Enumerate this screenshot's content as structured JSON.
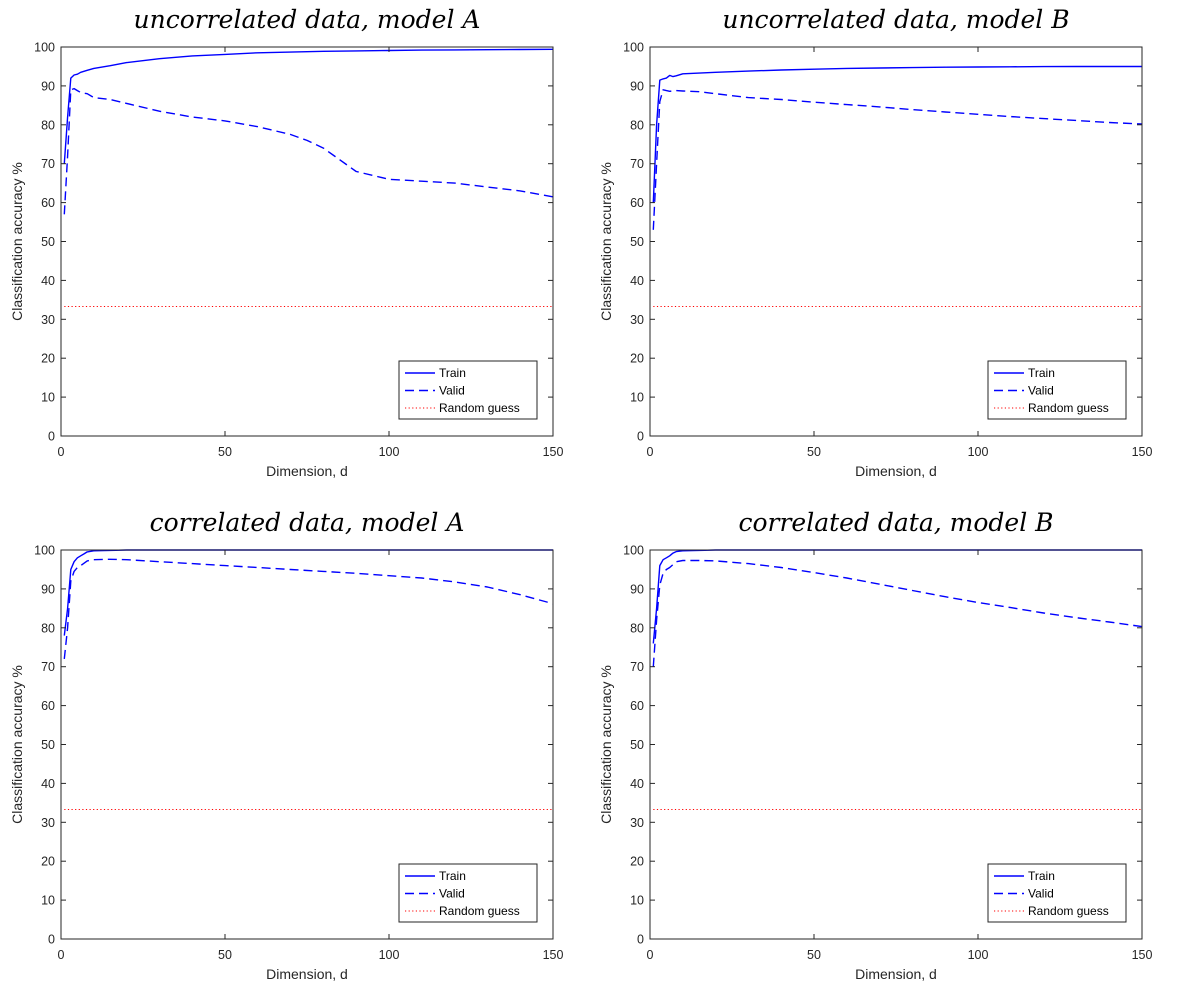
{
  "chart_data": [
    {
      "type": "line",
      "title": "uncorrelated data, model A",
      "xlabel": "Dimension, d",
      "ylabel": "Classification accuracy %",
      "xlim": [
        0,
        150
      ],
      "ylim": [
        0,
        100
      ],
      "xticks": [
        0,
        50,
        100,
        150
      ],
      "yticks": [
        0,
        10,
        20,
        30,
        40,
        50,
        60,
        70,
        80,
        90,
        100
      ],
      "grid": false,
      "legend_position": "bottom-right",
      "series": [
        {
          "name": "Train",
          "style": "solid",
          "color": "#0000ff",
          "x": [
            1,
            2,
            3,
            4,
            5,
            6,
            8,
            10,
            15,
            20,
            30,
            40,
            50,
            60,
            70,
            80,
            90,
            100,
            110,
            120,
            130,
            140,
            150
          ],
          "y": [
            70,
            82,
            92,
            92.8,
            93,
            93.5,
            94,
            94.5,
            95.2,
            96,
            97,
            97.7,
            98.1,
            98.5,
            98.7,
            98.9,
            99,
            99.1,
            99.2,
            99.25,
            99.3,
            99.35,
            99.4
          ]
        },
        {
          "name": "Valid",
          "style": "dashed",
          "color": "#0000ff",
          "x": [
            1,
            2,
            3,
            4,
            5,
            6,
            8,
            10,
            15,
            20,
            30,
            40,
            50,
            60,
            70,
            75,
            80,
            85,
            90,
            95,
            100,
            110,
            120,
            130,
            140,
            150
          ],
          "y": [
            57,
            72,
            89,
            89.3,
            88.8,
            88.3,
            88,
            87,
            86.5,
            85.5,
            83.5,
            82,
            81,
            79.5,
            77.5,
            76,
            74,
            71,
            68,
            67,
            66,
            65.5,
            65,
            64,
            63,
            61.5
          ]
        },
        {
          "name": "Random guess",
          "style": "dotted",
          "color": "#ff0000",
          "x": [
            1,
            150
          ],
          "y": [
            33.3,
            33.3
          ]
        }
      ]
    },
    {
      "type": "line",
      "title": "uncorrelated data, model B",
      "xlabel": "Dimension, d",
      "ylabel": "Classification accuracy %",
      "xlim": [
        0,
        150
      ],
      "ylim": [
        0,
        100
      ],
      "xticks": [
        0,
        50,
        100,
        150
      ],
      "yticks": [
        0,
        10,
        20,
        30,
        40,
        50,
        60,
        70,
        80,
        90,
        100
      ],
      "grid": false,
      "legend_position": "bottom-right",
      "series": [
        {
          "name": "Train",
          "style": "solid",
          "color": "#0000ff",
          "x": [
            1,
            2,
            3,
            4,
            5,
            6,
            7,
            8,
            10,
            15,
            20,
            30,
            40,
            50,
            60,
            70,
            80,
            90,
            100,
            110,
            120,
            130,
            140,
            150
          ],
          "y": [
            60,
            80,
            91.5,
            91.8,
            92,
            92.7,
            92.4,
            92.6,
            93.1,
            93.3,
            93.5,
            93.8,
            94.1,
            94.3,
            94.5,
            94.6,
            94.7,
            94.8,
            94.85,
            94.9,
            94.95,
            95,
            95,
            95
          ]
        },
        {
          "name": "Valid",
          "style": "dashed",
          "color": "#0000ff",
          "x": [
            1,
            2,
            3,
            4,
            5,
            6,
            8,
            10,
            15,
            20,
            30,
            40,
            50,
            60,
            70,
            80,
            90,
            100,
            110,
            120,
            130,
            140,
            150
          ],
          "y": [
            53,
            70,
            86,
            89,
            88.8,
            88.6,
            88.8,
            88.7,
            88.5,
            88,
            87,
            86.5,
            85.8,
            85.2,
            84.6,
            83.9,
            83.3,
            82.7,
            82.1,
            81.6,
            81.1,
            80.6,
            80.2
          ]
        },
        {
          "name": "Random guess",
          "style": "dotted",
          "color": "#ff0000",
          "x": [
            1,
            150
          ],
          "y": [
            33.3,
            33.3
          ]
        }
      ]
    },
    {
      "type": "line",
      "title": "correlated data, model A",
      "xlabel": "Dimension, d",
      "ylabel": "Classification accuracy %",
      "xlim": [
        0,
        150
      ],
      "ylim": [
        0,
        100
      ],
      "xticks": [
        0,
        50,
        100,
        150
      ],
      "yticks": [
        0,
        10,
        20,
        30,
        40,
        50,
        60,
        70,
        80,
        90,
        100
      ],
      "grid": false,
      "legend_position": "bottom-right",
      "series": [
        {
          "name": "Train",
          "style": "solid",
          "color": "#0000ff",
          "x": [
            1,
            2,
            3,
            4,
            5,
            6,
            7,
            8,
            10,
            15,
            20,
            30,
            50,
            100,
            150
          ],
          "y": [
            78,
            85,
            95,
            97,
            98,
            98.5,
            99,
            99.5,
            99.8,
            99.9,
            100,
            100,
            100,
            100,
            100
          ]
        },
        {
          "name": "Valid",
          "style": "dashed",
          "color": "#0000ff",
          "x": [
            1,
            2,
            3,
            4,
            5,
            6,
            8,
            10,
            15,
            20,
            30,
            40,
            50,
            60,
            70,
            80,
            90,
            100,
            110,
            120,
            130,
            140,
            150
          ],
          "y": [
            72,
            80,
            92,
            94.5,
            95.5,
            96,
            97.2,
            97.5,
            97.6,
            97.5,
            97,
            96.5,
            96,
            95.5,
            95,
            94.5,
            94,
            93.4,
            92.8,
            91.8,
            90.5,
            88.5,
            86.2
          ]
        },
        {
          "name": "Random guess",
          "style": "dotted",
          "color": "#ff0000",
          "x": [
            1,
            150
          ],
          "y": [
            33.3,
            33.3
          ]
        }
      ]
    },
    {
      "type": "line",
      "title": "correlated data, model B",
      "xlabel": "Dimension, d",
      "ylabel": "Classification accuracy %",
      "xlim": [
        0,
        150
      ],
      "ylim": [
        0,
        100
      ],
      "xticks": [
        0,
        50,
        100,
        150
      ],
      "yticks": [
        0,
        10,
        20,
        30,
        40,
        50,
        60,
        70,
        80,
        90,
        100
      ],
      "grid": false,
      "legend_position": "bottom-right",
      "series": [
        {
          "name": "Train",
          "style": "solid",
          "color": "#0000ff",
          "x": [
            1,
            2,
            3,
            4,
            5,
            6,
            7,
            8,
            10,
            15,
            20,
            30,
            50,
            100,
            150
          ],
          "y": [
            76,
            85,
            96,
            97.5,
            98,
            98.5,
            99.2,
            99.6,
            99.8,
            99.9,
            100,
            100,
            100,
            100,
            100
          ]
        },
        {
          "name": "Valid",
          "style": "dashed",
          "color": "#0000ff",
          "x": [
            1,
            2,
            3,
            4,
            5,
            6,
            8,
            10,
            15,
            20,
            30,
            40,
            50,
            60,
            70,
            80,
            90,
            100,
            110,
            120,
            130,
            140,
            150
          ],
          "y": [
            70,
            82,
            91,
            94,
            95,
            95.5,
            97,
            97.3,
            97.3,
            97.2,
            96.5,
            95.5,
            94.2,
            92.8,
            91.2,
            89.6,
            88,
            86.5,
            85.2,
            83.8,
            82.6,
            81.5,
            80.3
          ]
        },
        {
          "name": "Random guess",
          "style": "dotted",
          "color": "#ff0000",
          "x": [
            1,
            150
          ],
          "y": [
            33.3,
            33.3
          ]
        }
      ]
    }
  ]
}
